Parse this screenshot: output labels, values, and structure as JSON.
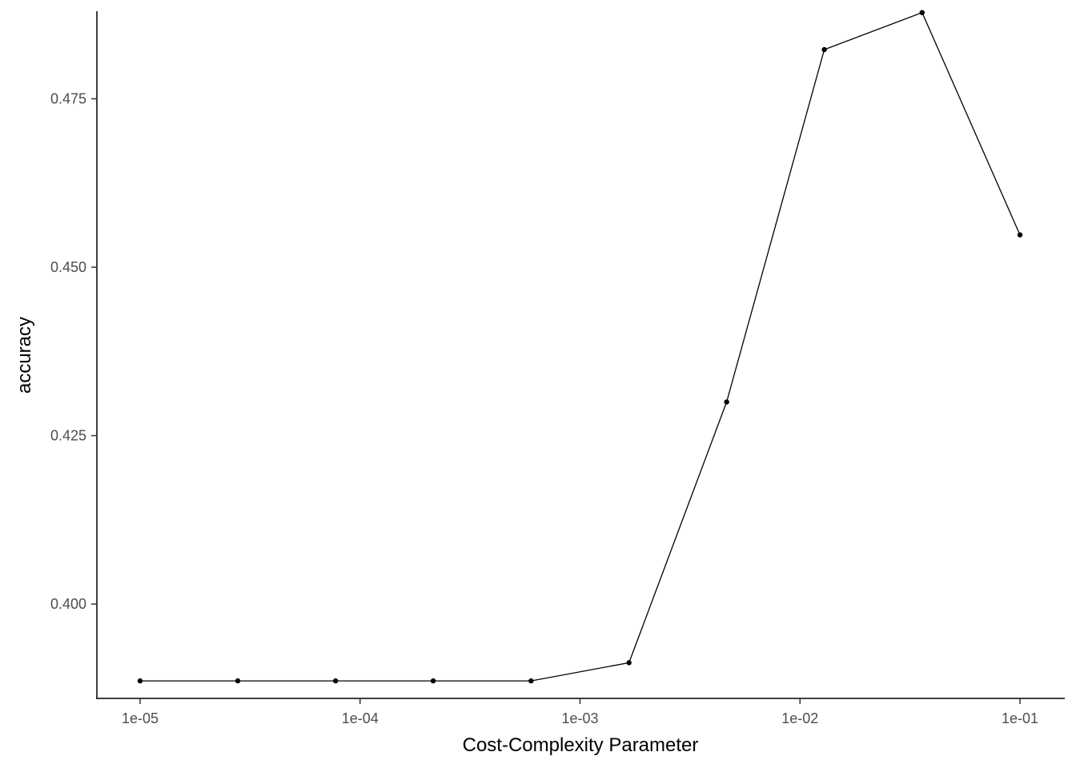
{
  "chart_data": {
    "type": "line",
    "title": "",
    "xlabel": "Cost-Complexity Parameter",
    "ylabel": "accuracy",
    "x_scale": "log10",
    "xlim": [
      1e-05,
      0.1
    ],
    "ylim": [
      0.386,
      0.488
    ],
    "grid": false,
    "legend": "none",
    "x_ticks": [
      {
        "value": 1e-05,
        "label": "1e-05"
      },
      {
        "value": 0.0001,
        "label": "1e-04"
      },
      {
        "value": 0.001,
        "label": "1e-03"
      },
      {
        "value": 0.01,
        "label": "1e-02"
      },
      {
        "value": 0.1,
        "label": "1e-01"
      }
    ],
    "y_ticks": [
      {
        "value": 0.4,
        "label": "0.400"
      },
      {
        "value": 0.425,
        "label": "0.425"
      },
      {
        "value": 0.45,
        "label": "0.450"
      },
      {
        "value": 0.475,
        "label": "0.475"
      }
    ],
    "x": [
      1e-05,
      2.78e-05,
      7.74e-05,
      0.000215,
      0.000599,
      0.00167,
      0.00464,
      0.0129,
      0.0359,
      0.1
    ],
    "series": [
      {
        "values": [
          0.3886,
          0.3886,
          0.3886,
          0.3886,
          0.3886,
          0.3913,
          0.43,
          0.4823,
          0.4878,
          0.4548
        ],
        "color": "#000000"
      }
    ]
  }
}
